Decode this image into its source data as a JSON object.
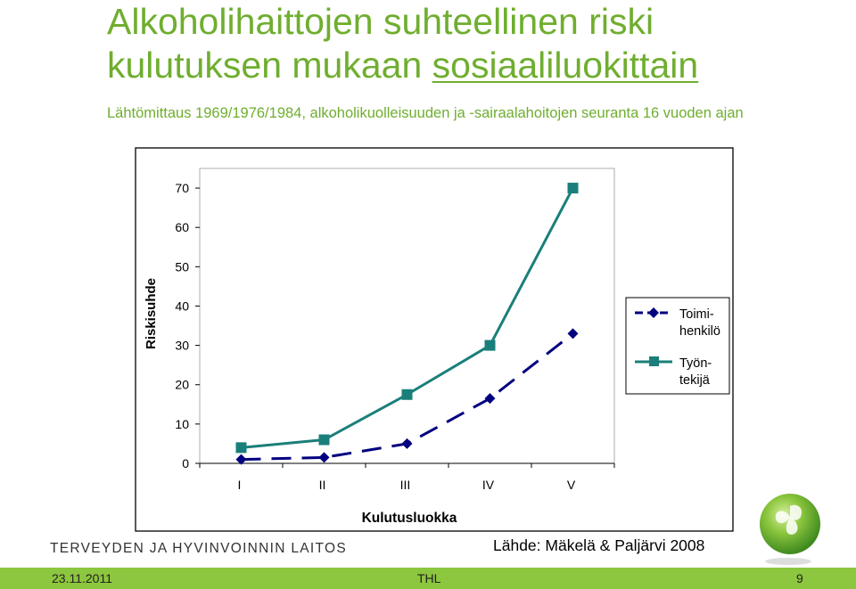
{
  "slide": {
    "title_line1": "Alkoholihaittojen suhteellinen riski",
    "title_line2_prefix": "kulutuksen mukaan ",
    "title_line2_link": "sosiaaliluokittain",
    "subtitle": "Lähtömittaus 1969/1976/1984, alkoholikuolleisuuden ja -sairaalahoitojen seuranta 16 vuoden ajan",
    "org_logo_text": "TERVEYDEN JA HYVINVOINNIN LAITOS",
    "source": "Lähde: Mäkelä & Paljärvi 2008",
    "footer_date": "23.11.2011",
    "footer_org": "THL",
    "page_number": "9"
  },
  "chart_data": {
    "type": "line",
    "categories": [
      "I",
      "II",
      "III",
      "IV",
      "V"
    ],
    "y_ticks": [
      0,
      10,
      20,
      30,
      40,
      50,
      60,
      70
    ],
    "ylim": [
      0,
      75
    ],
    "xlabel": "Kulutusluokka",
    "ylabel": "Riskisuhde",
    "series": [
      {
        "name_line1": "Toimi-",
        "name_line2": "henkilö",
        "color": "#000080",
        "marker": "diamond",
        "dash": true,
        "values": [
          1,
          1.5,
          5,
          16.5,
          33
        ]
      },
      {
        "name_line1": "Työn-",
        "name_line2": "tekijä",
        "color": "#1a7f7a",
        "marker": "square",
        "dash": false,
        "values": [
          4,
          6,
          17.5,
          30,
          70
        ]
      }
    ],
    "legend_position": "right"
  },
  "colors": {
    "accent": "#6fae2f",
    "bar": "#8dc63f"
  }
}
